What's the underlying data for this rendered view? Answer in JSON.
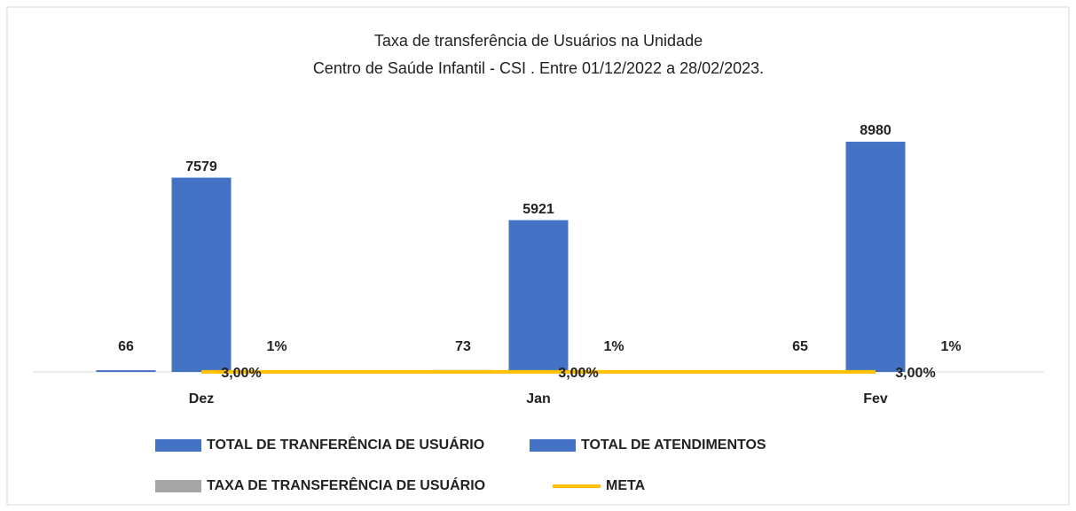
{
  "chart_data": {
    "type": "bar",
    "title": "Taxa de transferência de Usuários na Unidade",
    "subtitle": "Centro de Saúde Infantil - CSI . Entre 01/12/2022 a 28/02/2023.",
    "categories": [
      "Dez",
      "Jan",
      "Fev"
    ],
    "ylim": [
      0,
      10000
    ],
    "series": [
      {
        "name": "TOTAL DE TRANFERÊNCIA DE USUÁRIO",
        "color": "#4472c4",
        "values": [
          66,
          73,
          65
        ]
      },
      {
        "name": "TOTAL DE ATENDIMENTOS",
        "color": "#4472c4",
        "values": [
          7579,
          5921,
          8980
        ]
      },
      {
        "name": "TAXA DE TRANSFERÊNCIA DE USUÁRIO",
        "color": "#a5a5a5",
        "values": [
          1,
          1,
          1
        ],
        "value_labels": [
          "1%",
          "1%",
          "1%"
        ]
      },
      {
        "name": "META",
        "type": "line",
        "color": "#ffc000",
        "values": [
          3,
          3,
          3
        ],
        "value_labels": [
          "3,00%",
          "3,00%",
          "3,00%"
        ]
      }
    ]
  }
}
